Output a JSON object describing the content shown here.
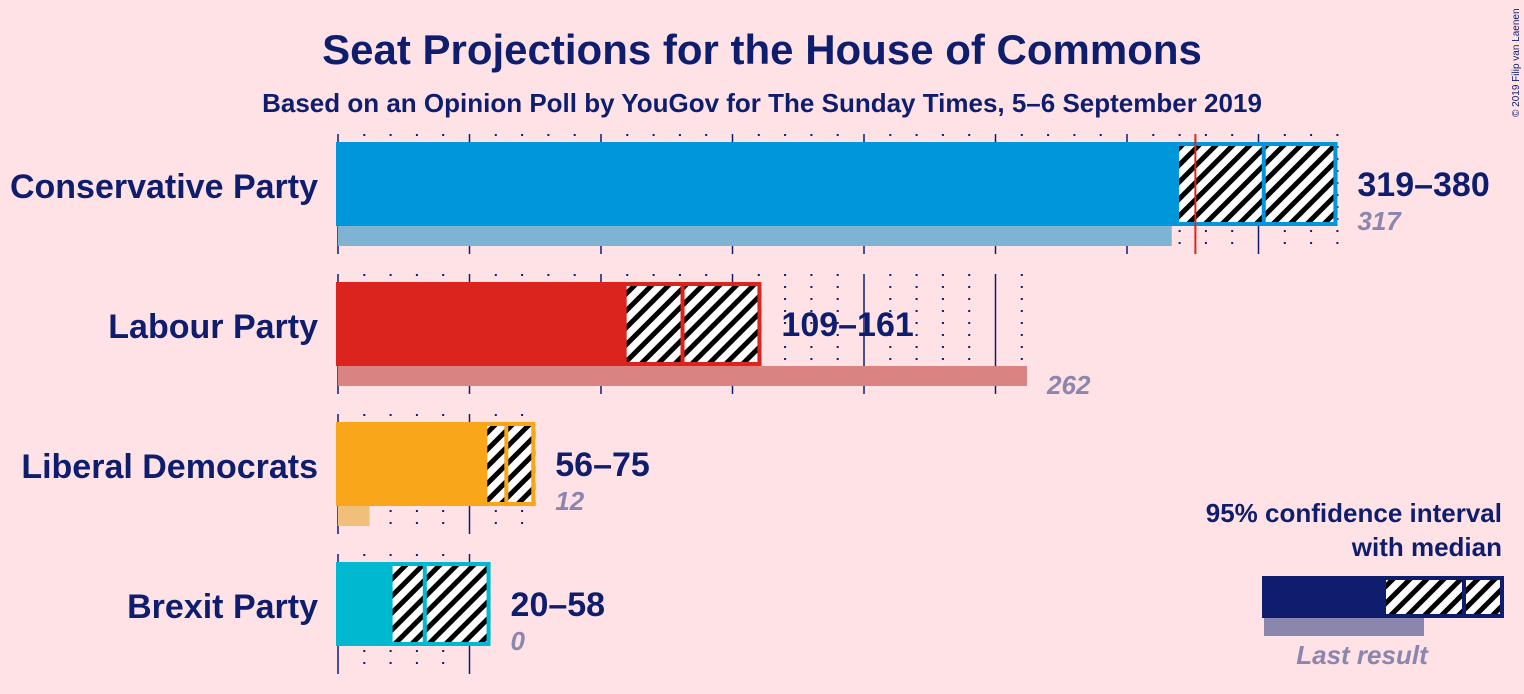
{
  "chart_data": {
    "type": "bar",
    "title": "Seat Projections for the House of Commons",
    "subtitle": "Based on an Opinion Poll by YouGov for The Sunday Times, 5–6 September 2019",
    "majority_line": 326,
    "series": [
      {
        "name": "Conservative Party",
        "low": 319,
        "median": 352,
        "high": 380,
        "last": 317,
        "range_label": "319–380",
        "last_label": "317",
        "color": "#0096DB",
        "last_color": "#7FB3D4"
      },
      {
        "name": "Labour Party",
        "low": 109,
        "median": 131,
        "high": 161,
        "last": 262,
        "range_label": "109–161",
        "last_label": "262",
        "color": "#DC241F",
        "last_color": "#D98482"
      },
      {
        "name": "Liberal Democrats",
        "low": 56,
        "median": 64,
        "high": 75,
        "last": 12,
        "range_label": "56–75",
        "last_label": "12",
        "color": "#FAA61A",
        "last_color": "#F0C07A"
      },
      {
        "name": "Brexit Party",
        "low": 20,
        "median": 33,
        "high": 58,
        "last": 0,
        "range_label": "20–58",
        "last_label": "0",
        "color": "#00B9D1",
        "last_color": "#7FC7D6"
      }
    ],
    "legend": {
      "line1": "95% confidence interval",
      "line2": "with median",
      "last_result": "Last result",
      "color": "#0E1D6E",
      "last_color": "#8A86AE"
    }
  },
  "copyright": "© 2019 Filip van Laenen"
}
